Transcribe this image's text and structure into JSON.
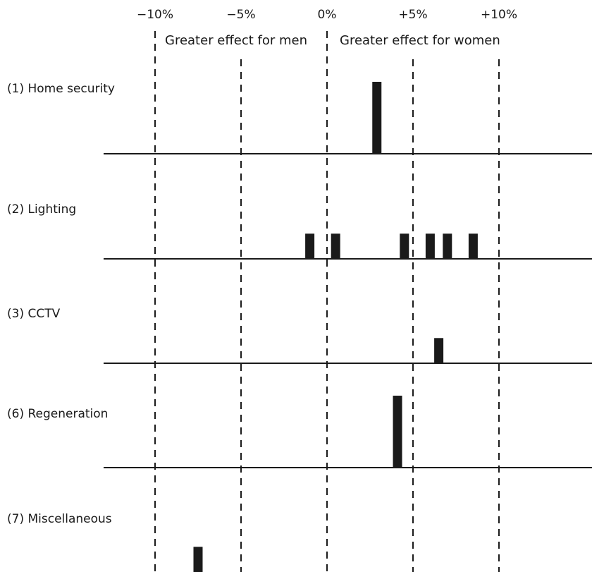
{
  "chart_data": {
    "type": "bar",
    "x_unit": "%",
    "xlim": [
      -10,
      10
    ],
    "x_ticks": [
      {
        "value": -10,
        "label": "−10%"
      },
      {
        "value": -5,
        "label": "−5%"
      },
      {
        "value": 0,
        "label": "0%"
      },
      {
        "value": 5,
        "label": "+5%"
      },
      {
        "value": 10,
        "label": "+10%"
      }
    ],
    "annotations": {
      "left": "Greater effect for men",
      "right": "Greater effect for women"
    },
    "grid": "vertical dashed lines at each tick",
    "colors": {
      "bar": "#1a1a1a",
      "line": "#1a1a1a"
    },
    "rows": [
      {
        "label": "(1) Home security",
        "bars": [
          {
            "x": 2.9,
            "height": 1.0
          }
        ]
      },
      {
        "label": "(2) Lighting",
        "bars": [
          {
            "x": -1.0,
            "height": 0.35
          },
          {
            "x": 0.5,
            "height": 0.35
          },
          {
            "x": 4.5,
            "height": 0.35
          },
          {
            "x": 6.0,
            "height": 0.35
          },
          {
            "x": 7.0,
            "height": 0.35
          },
          {
            "x": 8.5,
            "height": 0.35
          }
        ]
      },
      {
        "label": "(3) CCTV",
        "bars": [
          {
            "x": 6.5,
            "height": 0.35
          }
        ]
      },
      {
        "label": "(6) Regeneration",
        "bars": [
          {
            "x": 4.1,
            "height": 1.0
          }
        ]
      },
      {
        "label": "(7) Miscellaneous",
        "bars": [
          {
            "x": -7.5,
            "height": 0.35
          }
        ]
      }
    ]
  }
}
